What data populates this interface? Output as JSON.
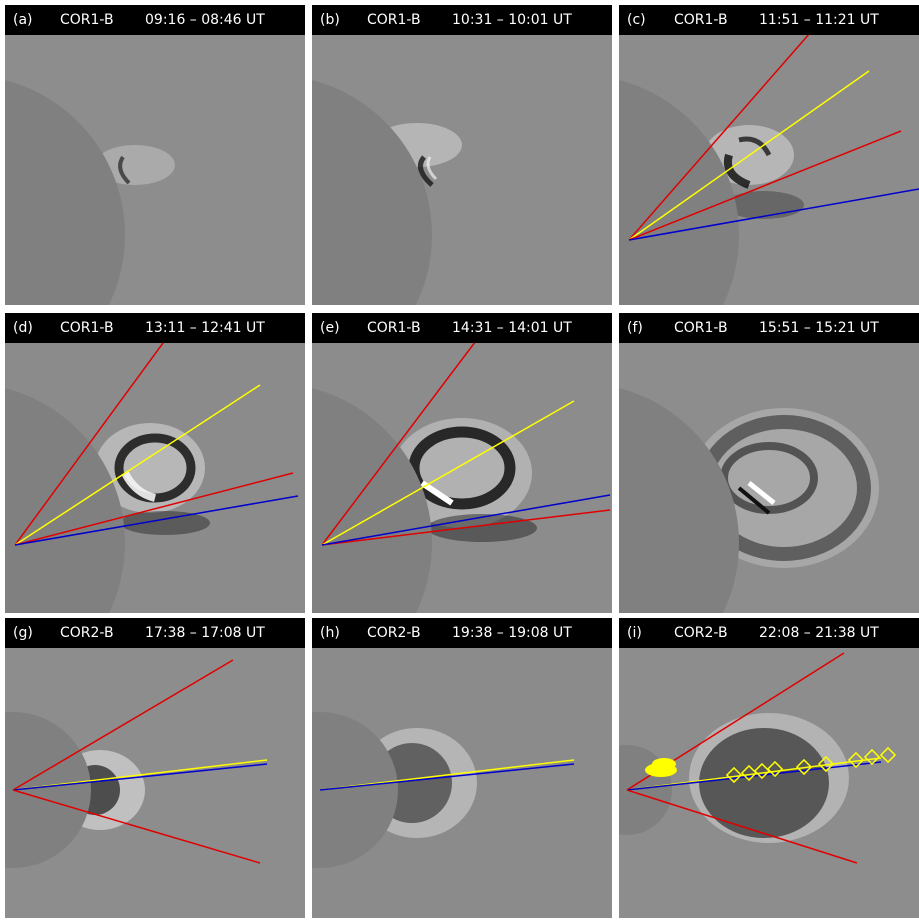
{
  "panels": [
    {
      "label": "(a)",
      "instrument": "COR1-B",
      "time": "09:16 – 08:46 UT"
    },
    {
      "label": "(b)",
      "instrument": "COR1-B",
      "time": "10:31 – 10:01 UT"
    },
    {
      "label": "(c)",
      "instrument": "COR1-B",
      "time": "11:51 – 11:21 UT"
    },
    {
      "label": "(d)",
      "instrument": "COR1-B",
      "time": "13:11 – 12:41 UT"
    },
    {
      "label": "(e)",
      "instrument": "COR1-B",
      "time": "14:31 – 14:01 UT"
    },
    {
      "label": "(f)",
      "instrument": "COR1-B",
      "time": "15:51 – 15:21 UT"
    },
    {
      "label": "(g)",
      "instrument": "COR2-B",
      "time": "17:38 – 17:08 UT"
    },
    {
      "label": "(h)",
      "instrument": "COR2-B",
      "time": "19:38 – 19:08 UT"
    },
    {
      "label": "(i)",
      "instrument": "COR2-B",
      "time": "22:08 – 21:38 UT"
    }
  ],
  "colors": {
    "occulter": "#808080",
    "background": "#8c8c8c",
    "title_bar": "#000000",
    "red_line": "#e00000",
    "yellow_line": "#ffff00",
    "blue_line": "#0000cc"
  }
}
